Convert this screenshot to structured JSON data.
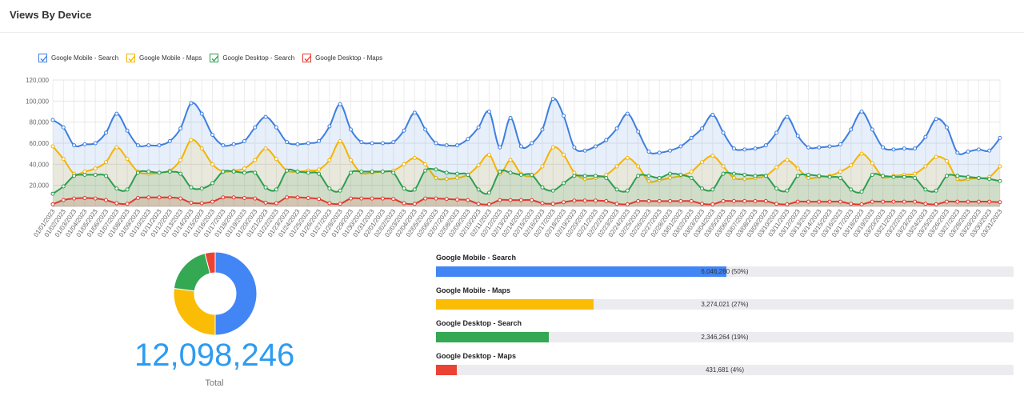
{
  "header": {
    "title": "Views By Device"
  },
  "legend": [
    {
      "label": "Google Mobile - Search",
      "color": "#3d7fe0"
    },
    {
      "label": "Google Mobile - Maps",
      "color": "#f4b400"
    },
    {
      "label": "Google Desktop - Search",
      "color": "#2e9e4f"
    },
    {
      "label": "Google Desktop - Maps",
      "color": "#e03a30"
    }
  ],
  "chart_data": {
    "type": "area",
    "ylim": [
      0,
      120000
    ],
    "yticks": [
      "120,000",
      "100,000",
      "80,000",
      "60,000",
      "40,000",
      "20,000"
    ],
    "grid": true,
    "legend_position": "top-left",
    "x": [
      "01/01/2023",
      "01/02/2023",
      "01/03/2023",
      "01/04/2023",
      "01/05/2023",
      "01/06/2023",
      "01/07/2023",
      "01/08/2023",
      "01/09/2023",
      "01/10/2023",
      "01/11/2023",
      "01/12/2023",
      "01/13/2023",
      "01/14/2023",
      "01/15/2023",
      "01/16/2023",
      "01/17/2023",
      "01/18/2023",
      "01/19/2023",
      "01/20/2023",
      "01/21/2023",
      "01/22/2023",
      "01/23/2023",
      "01/24/2023",
      "01/25/2023",
      "01/26/2023",
      "01/27/2023",
      "01/28/2023",
      "01/29/2023",
      "01/30/2023",
      "01/31/2023",
      "02/01/2023",
      "02/02/2023",
      "02/03/2023",
      "02/04/2023",
      "02/05/2023",
      "02/06/2023",
      "02/07/2023",
      "02/08/2023",
      "02/09/2023",
      "02/10/2023",
      "02/11/2023",
      "02/12/2023",
      "02/13/2023",
      "02/14/2023",
      "02/15/2023",
      "02/16/2023",
      "02/17/2023",
      "02/18/2023",
      "02/19/2023",
      "02/20/2023",
      "02/21/2023",
      "02/22/2023",
      "02/23/2023",
      "02/24/2023",
      "02/25/2023",
      "02/26/2023",
      "02/27/2023",
      "02/28/2023",
      "03/01/2023",
      "03/02/2023",
      "03/03/2023",
      "03/04/2023",
      "03/05/2023",
      "03/06/2023",
      "03/07/2023",
      "03/08/2023",
      "03/09/2023",
      "03/10/2023",
      "03/11/2023",
      "03/12/2023",
      "03/13/2023",
      "03/14/2023",
      "03/15/2023",
      "03/16/2023",
      "03/17/2023",
      "03/18/2023",
      "03/19/2023",
      "03/20/2023",
      "03/21/2023",
      "03/22/2023",
      "03/23/2023",
      "03/24/2023",
      "03/25/2023",
      "03/26/2023",
      "03/27/2023",
      "03/28/2023",
      "03/29/2023",
      "03/30/2023",
      "03/31/2023"
    ],
    "series": [
      {
        "name": "Google Mobile - Search",
        "color": "#3d7fe0",
        "fill": "rgba(61,127,224,0.12)",
        "values": [
          82000,
          75000,
          58000,
          59000,
          60000,
          70000,
          88000,
          72000,
          58000,
          58000,
          58000,
          62000,
          74000,
          98000,
          88000,
          68000,
          58000,
          59000,
          62000,
          75000,
          85000,
          75000,
          61000,
          59000,
          60000,
          62000,
          76000,
          97000,
          73000,
          61000,
          60000,
          60000,
          61000,
          72000,
          89000,
          73000,
          60000,
          58000,
          58000,
          64000,
          75000,
          90000,
          56000,
          84000,
          57000,
          60000,
          73000,
          102000,
          86000,
          56000,
          53000,
          57000,
          63000,
          74000,
          88000,
          71000,
          52000,
          51000,
          53000,
          57000,
          65000,
          74000,
          87000,
          70000,
          55000,
          54000,
          55000,
          58000,
          70000,
          85000,
          67000,
          56000,
          56000,
          57000,
          59000,
          73000,
          90000,
          73000,
          56000,
          54000,
          55000,
          55000,
          66000,
          83000,
          75000,
          51000,
          52000,
          54000,
          53000,
          65000
        ]
      },
      {
        "name": "Google Mobile - Maps",
        "color": "#f4b400",
        "fill": "rgba(244,180,0,0.12)",
        "values": [
          57000,
          45000,
          31000,
          33000,
          36000,
          42000,
          56000,
          45000,
          33000,
          31000,
          32000,
          34000,
          44000,
          63000,
          55000,
          40000,
          33000,
          34000,
          36000,
          44000,
          55000,
          45000,
          34000,
          33000,
          34000,
          35000,
          44000,
          62000,
          44000,
          32000,
          32000,
          33000,
          34000,
          40000,
          46000,
          40000,
          27000,
          26000,
          27000,
          30000,
          39000,
          49000,
          31000,
          44000,
          31000,
          29000,
          38000,
          56000,
          49000,
          32000,
          26000,
          27000,
          30000,
          38000,
          46000,
          38000,
          24000,
          25000,
          27000,
          29000,
          33000,
          42000,
          48000,
          38000,
          27000,
          26000,
          27000,
          29000,
          37000,
          44000,
          36000,
          27000,
          28000,
          29000,
          33000,
          39000,
          50000,
          41000,
          28000,
          29000,
          30000,
          31000,
          38000,
          47000,
          43000,
          26000,
          26000,
          27000,
          28000,
          38000
        ]
      },
      {
        "name": "Google Desktop - Search",
        "color": "#2e9e4f",
        "fill": "rgba(46,158,79,0.13)",
        "values": [
          12000,
          19000,
          29000,
          30000,
          30000,
          29000,
          17000,
          16000,
          32000,
          33000,
          32000,
          33000,
          31000,
          18000,
          17000,
          22000,
          33000,
          33000,
          32000,
          32000,
          18000,
          16000,
          34000,
          33000,
          32000,
          31000,
          17000,
          15000,
          32000,
          33000,
          33000,
          33000,
          32000,
          17000,
          16000,
          34000,
          35000,
          32000,
          31000,
          30000,
          16000,
          13000,
          33000,
          32000,
          30000,
          30000,
          18000,
          15000,
          22000,
          29000,
          29000,
          29000,
          27000,
          16000,
          15000,
          29000,
          29000,
          27000,
          31000,
          30000,
          27000,
          17000,
          16000,
          31000,
          31000,
          30000,
          29000,
          29000,
          17000,
          15000,
          29000,
          30000,
          29000,
          28000,
          27000,
          16000,
          14000,
          30000,
          29000,
          28000,
          28000,
          27000,
          16000,
          15000,
          29000,
          29000,
          28000,
          27000,
          26000,
          24000
        ]
      },
      {
        "name": "Google Desktop - Maps",
        "color": "#e03a30",
        "fill": "rgba(224,58,48,0.15)",
        "values": [
          2000,
          6000,
          7500,
          8000,
          7500,
          6000,
          3000,
          2500,
          8000,
          8500,
          8500,
          8500,
          7500,
          3500,
          3000,
          4500,
          8500,
          8500,
          8000,
          7500,
          3500,
          3000,
          8500,
          8500,
          8000,
          7000,
          3000,
          2500,
          7500,
          7500,
          7500,
          7500,
          7000,
          3000,
          2500,
          7500,
          7500,
          7000,
          6500,
          6000,
          2500,
          2000,
          6000,
          6000,
          6000,
          6000,
          3000,
          2500,
          4000,
          5500,
          5500,
          5500,
          5000,
          2500,
          2000,
          5000,
          5000,
          5000,
          5000,
          5000,
          5000,
          2500,
          2000,
          5000,
          5000,
          5000,
          5000,
          5000,
          2500,
          2000,
          4500,
          4500,
          4500,
          4500,
          4500,
          2500,
          2000,
          4500,
          4500,
          4500,
          4500,
          4500,
          2500,
          2000,
          4500,
          4500,
          4500,
          4500,
          4500,
          4000
        ]
      }
    ]
  },
  "breakdown": {
    "total": "12,098,246",
    "total_label": "Total",
    "items": [
      {
        "name": "Google Mobile - Search",
        "value_text": "6,046,280 (50%)",
        "value": 6046280,
        "fraction": 0.5,
        "color": "#4285f4"
      },
      {
        "name": "Google Mobile - Maps",
        "value_text": "3,274,021 (27%)",
        "value": 3274021,
        "fraction": 0.27,
        "color": "#fbbc05"
      },
      {
        "name": "Google Desktop - Search",
        "value_text": "2,346,264 (19%)",
        "value": 2346264,
        "fraction": 0.19,
        "color": "#34a853"
      },
      {
        "name": "Google Desktop - Maps",
        "value_text": "431,681 (4%)",
        "value": 431681,
        "fraction": 0.04,
        "color": "#ea4335"
      }
    ]
  }
}
